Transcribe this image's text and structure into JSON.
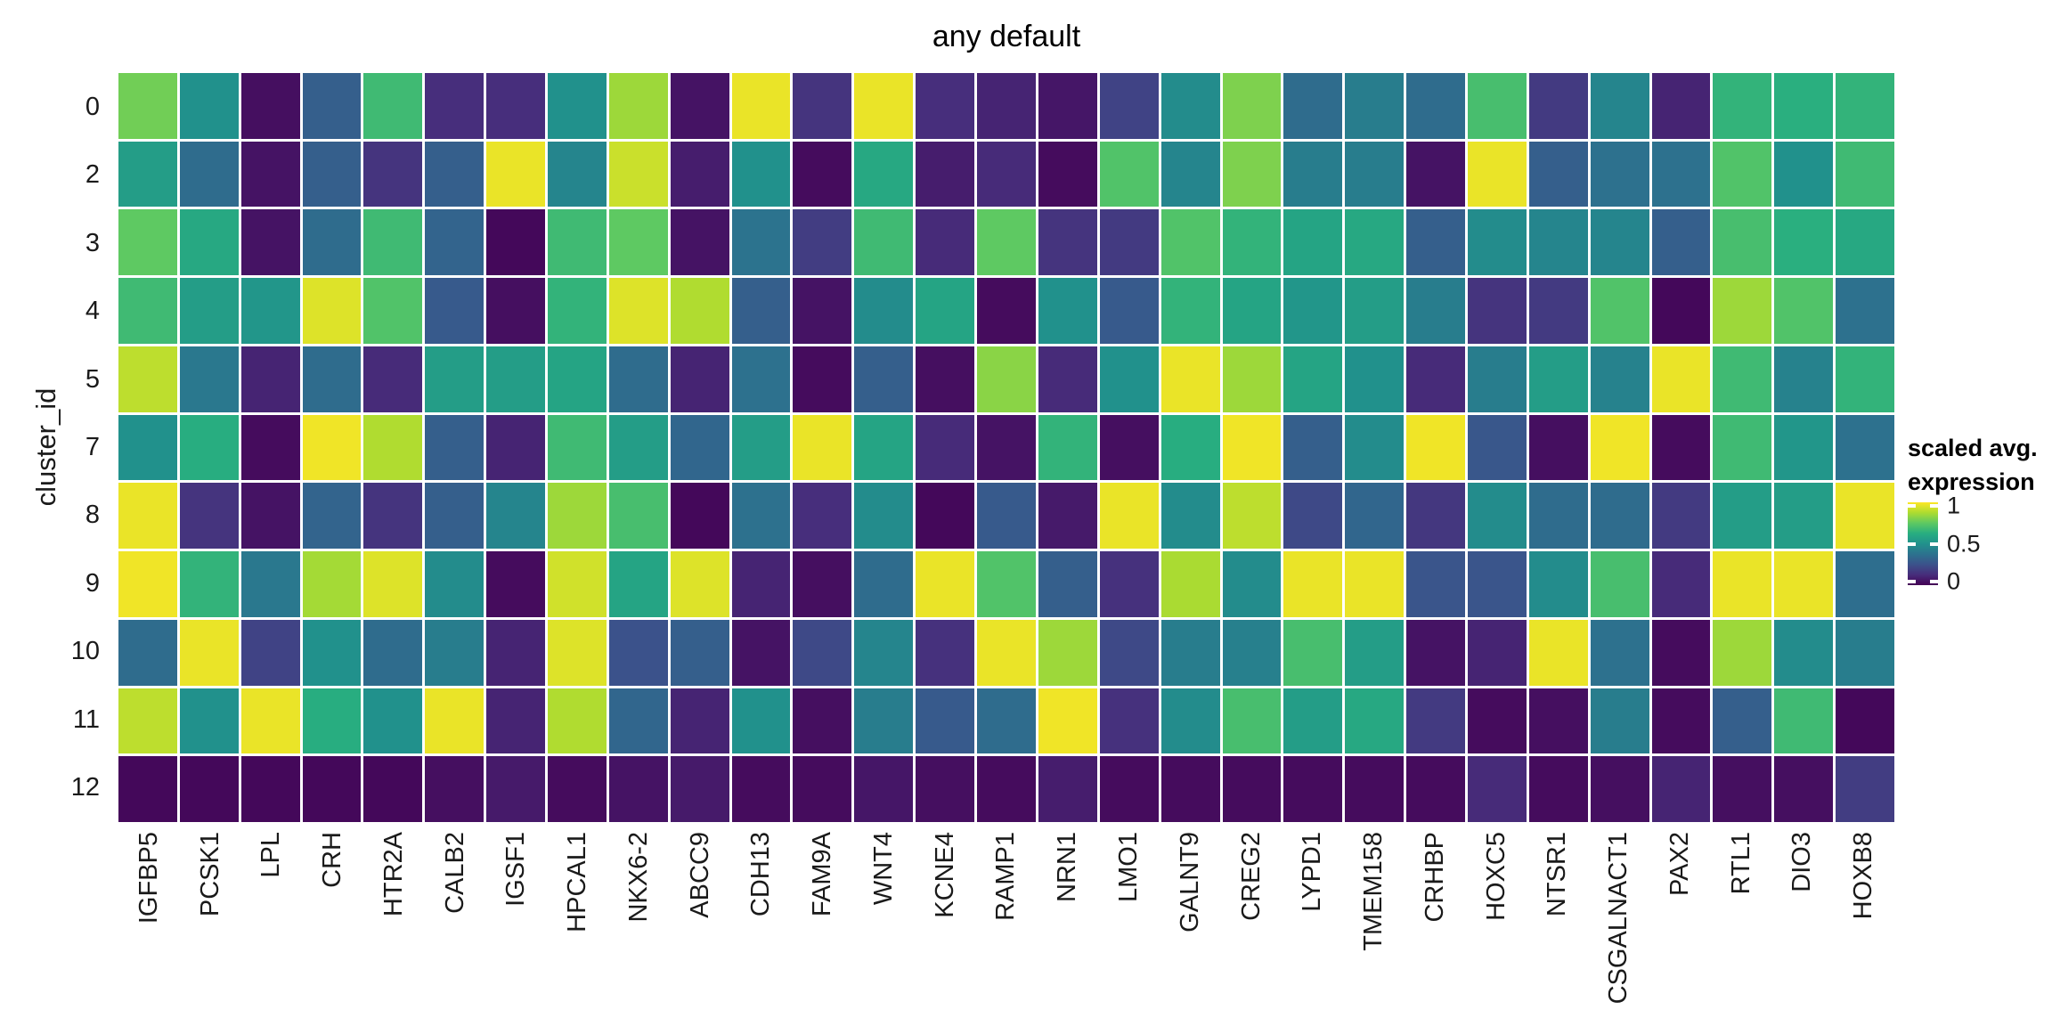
{
  "chart_data": {
    "type": "heatmap",
    "title": "any default",
    "ylabel": "cluster_id",
    "rows": [
      "0",
      "2",
      "3",
      "4",
      "5",
      "7",
      "8",
      "9",
      "10",
      "11",
      "12"
    ],
    "columns": [
      "IGFBP5",
      "PCSK1",
      "LPL",
      "CRH",
      "HTR2A",
      "CALB2",
      "IGSF1",
      "HPCAL1",
      "NKX6-2",
      "ABCC9",
      "CDH13",
      "FAM9A",
      "WNT4",
      "KCNE4",
      "RAMP1",
      "NRN1",
      "LMO1",
      "GALNT9",
      "CREG2",
      "LYPD1",
      "TMEM158",
      "CRHBP",
      "HOXC5",
      "NTSR1",
      "CSGALNACT1",
      "PAX2",
      "RTL1",
      "DIO3",
      "HOXB8"
    ],
    "values": [
      [
        0.78,
        0.5,
        0.04,
        0.3,
        0.68,
        0.13,
        0.13,
        0.5,
        0.85,
        0.05,
        0.97,
        0.15,
        0.97,
        0.13,
        0.1,
        0.06,
        0.2,
        0.48,
        0.8,
        0.35,
        0.42,
        0.35,
        0.7,
        0.17,
        0.45,
        0.1,
        0.65,
        0.63,
        0.65
      ],
      [
        0.55,
        0.35,
        0.05,
        0.3,
        0.15,
        0.3,
        0.97,
        0.45,
        0.92,
        0.08,
        0.5,
        0.03,
        0.6,
        0.08,
        0.12,
        0.03,
        0.72,
        0.45,
        0.8,
        0.42,
        0.42,
        0.05,
        0.97,
        0.3,
        0.37,
        0.37,
        0.72,
        0.5,
        0.68
      ],
      [
        0.75,
        0.6,
        0.05,
        0.35,
        0.68,
        0.32,
        0.02,
        0.68,
        0.75,
        0.05,
        0.38,
        0.18,
        0.68,
        0.12,
        0.75,
        0.15,
        0.17,
        0.72,
        0.65,
        0.58,
        0.6,
        0.3,
        0.48,
        0.45,
        0.45,
        0.3,
        0.7,
        0.63,
        0.6
      ],
      [
        0.68,
        0.55,
        0.52,
        0.95,
        0.72,
        0.28,
        0.04,
        0.65,
        0.95,
        0.88,
        0.3,
        0.05,
        0.48,
        0.58,
        0.03,
        0.5,
        0.28,
        0.65,
        0.58,
        0.52,
        0.55,
        0.42,
        0.15,
        0.17,
        0.72,
        0.02,
        0.85,
        0.72,
        0.37
      ],
      [
        0.9,
        0.4,
        0.1,
        0.35,
        0.12,
        0.55,
        0.55,
        0.58,
        0.35,
        0.1,
        0.37,
        0.03,
        0.3,
        0.04,
        0.82,
        0.12,
        0.5,
        0.97,
        0.85,
        0.58,
        0.5,
        0.12,
        0.42,
        0.55,
        0.44,
        0.97,
        0.68,
        0.44,
        0.65
      ],
      [
        0.5,
        0.62,
        0.03,
        0.98,
        0.88,
        0.3,
        0.1,
        0.68,
        0.55,
        0.33,
        0.55,
        0.97,
        0.58,
        0.12,
        0.05,
        0.65,
        0.04,
        0.62,
        0.98,
        0.3,
        0.48,
        0.98,
        0.27,
        0.04,
        0.98,
        0.03,
        0.68,
        0.52,
        0.37
      ],
      [
        0.97,
        0.15,
        0.05,
        0.32,
        0.15,
        0.3,
        0.45,
        0.85,
        0.7,
        0.02,
        0.37,
        0.13,
        0.48,
        0.02,
        0.28,
        0.07,
        0.97,
        0.48,
        0.9,
        0.22,
        0.33,
        0.16,
        0.48,
        0.35,
        0.35,
        0.17,
        0.55,
        0.55,
        0.97
      ],
      [
        0.98,
        0.65,
        0.4,
        0.86,
        0.95,
        0.48,
        0.03,
        0.93,
        0.58,
        0.95,
        0.1,
        0.04,
        0.35,
        0.97,
        0.72,
        0.3,
        0.14,
        0.87,
        0.48,
        0.97,
        0.97,
        0.26,
        0.26,
        0.48,
        0.7,
        0.12,
        0.97,
        0.97,
        0.36
      ],
      [
        0.35,
        0.97,
        0.2,
        0.5,
        0.35,
        0.42,
        0.1,
        0.95,
        0.25,
        0.3,
        0.05,
        0.22,
        0.45,
        0.14,
        0.97,
        0.85,
        0.22,
        0.42,
        0.43,
        0.7,
        0.55,
        0.05,
        0.1,
        0.97,
        0.37,
        0.03,
        0.85,
        0.48,
        0.42
      ],
      [
        0.9,
        0.5,
        0.97,
        0.62,
        0.5,
        0.97,
        0.1,
        0.88,
        0.33,
        0.1,
        0.5,
        0.04,
        0.42,
        0.28,
        0.35,
        0.98,
        0.14,
        0.48,
        0.7,
        0.55,
        0.6,
        0.17,
        0.03,
        0.04,
        0.42,
        0.03,
        0.3,
        0.68,
        0.02
      ],
      [
        0.02,
        0.02,
        0.02,
        0.02,
        0.02,
        0.04,
        0.07,
        0.03,
        0.05,
        0.07,
        0.03,
        0.03,
        0.06,
        0.04,
        0.03,
        0.08,
        0.03,
        0.03,
        0.03,
        0.03,
        0.03,
        0.03,
        0.12,
        0.03,
        0.04,
        0.1,
        0.04,
        0.04,
        0.18
      ]
    ],
    "value_range": [
      0,
      1
    ],
    "colormap": "viridis",
    "grid": false,
    "legend": {
      "position": "right",
      "title_line1": "scaled avg.",
      "title_line2": "expression",
      "ticks": [
        {
          "label": "1",
          "value": 1
        },
        {
          "label": "0.5",
          "value": 0.5
        },
        {
          "label": "0",
          "value": 0
        }
      ]
    }
  },
  "colors": {
    "background": "#ffffff",
    "axis_text": "#1a1a1a",
    "title_text": "#000000",
    "viridis_stops": [
      "#440154",
      "#472d7b",
      "#3b528b",
      "#2c728e",
      "#21918c",
      "#28ae80",
      "#5ec962",
      "#addc30",
      "#fde725"
    ]
  }
}
